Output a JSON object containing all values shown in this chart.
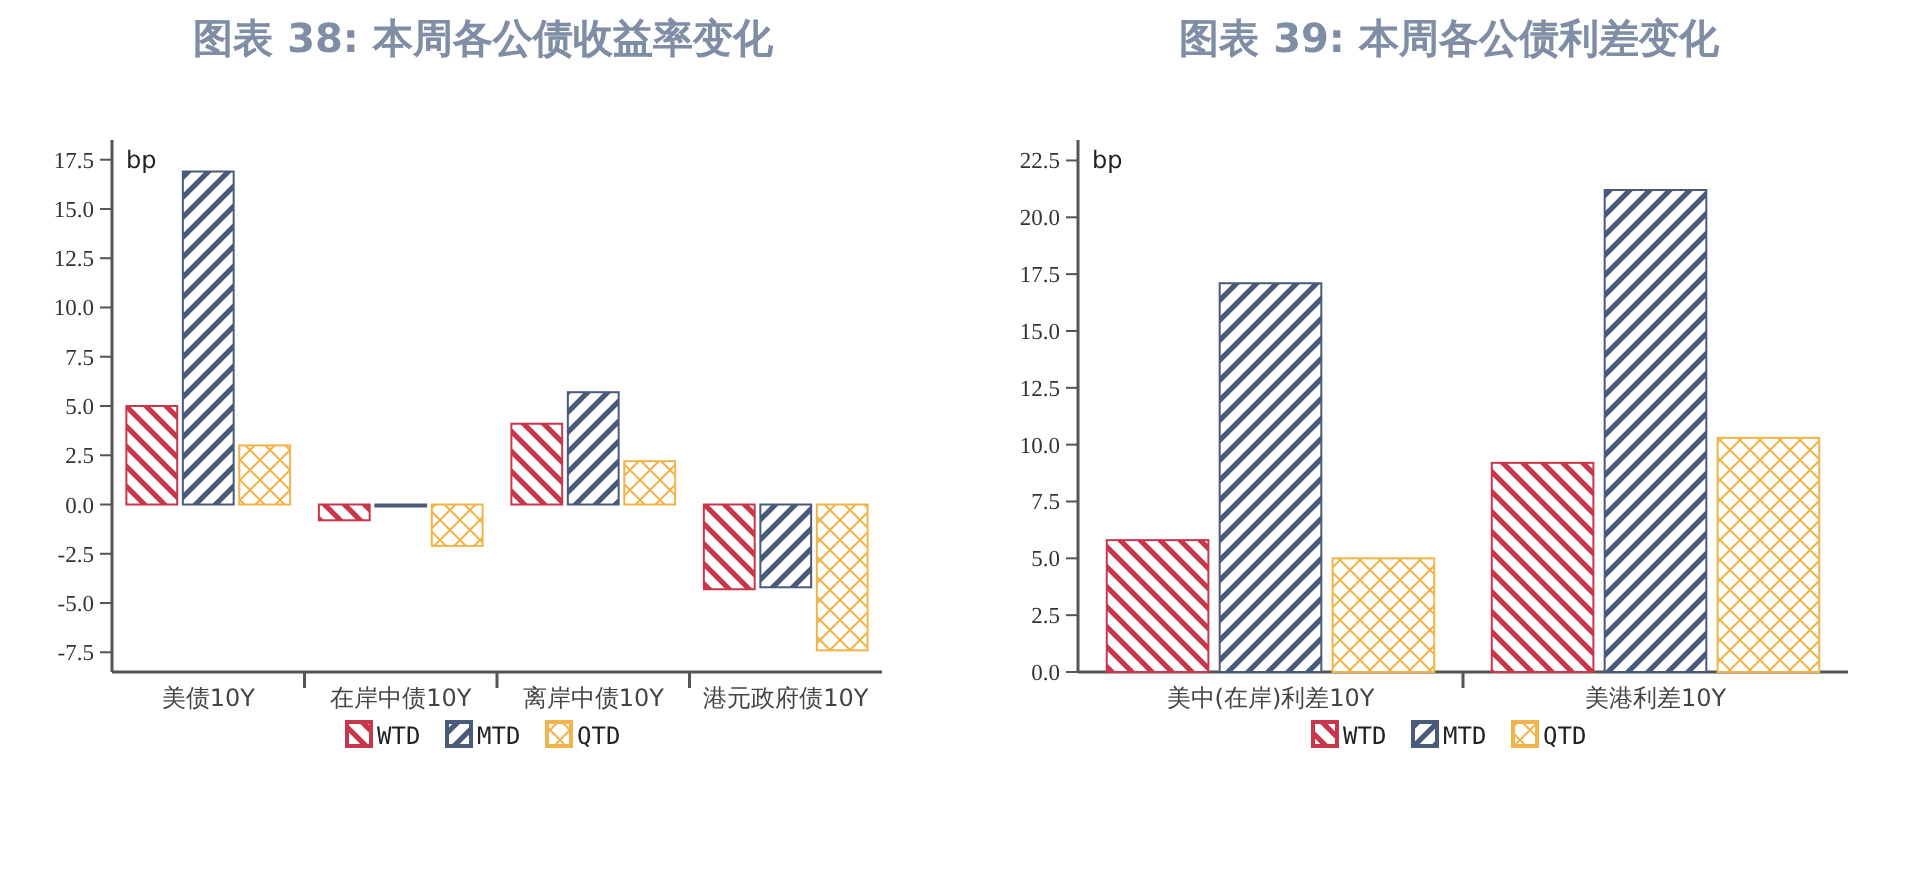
{
  "chart_data": [
    {
      "type": "bar",
      "title": "图表 38: 本周各公债收益率变化",
      "ylabel": "bp",
      "categories": [
        "美债10Y",
        "在岸中债10Y",
        "离岸中债10Y",
        "港元政府债10Y"
      ],
      "series": [
        {
          "name": "WTD",
          "color": "#c8374b",
          "values": [
            5.0,
            -0.8,
            4.1,
            -4.3
          ]
        },
        {
          "name": "MTD",
          "color": "#4a5a7a",
          "values": [
            16.9,
            -0.1,
            5.7,
            -4.2
          ]
        },
        {
          "name": "QTD",
          "color": "#f0b44a",
          "values": [
            3.0,
            -2.1,
            2.2,
            -7.4
          ]
        }
      ],
      "ylim": [
        -8.5,
        18.5
      ],
      "yticks": [
        {
          "value": -7.5,
          "label": "-7.5"
        },
        {
          "value": -5,
          "label": "-5.0"
        },
        {
          "value": -2.5,
          "label": "-2.5"
        },
        {
          "value": 0,
          "label": "0.0"
        },
        {
          "value": 2.5,
          "label": "2.5"
        },
        {
          "value": 5,
          "label": "5.0"
        },
        {
          "value": 7.5,
          "label": "7.5"
        },
        {
          "value": 10,
          "label": "10.0"
        },
        {
          "value": 12.5,
          "label": "12.5"
        },
        {
          "value": 15,
          "label": "15.0"
        },
        {
          "value": 17.5,
          "label": "17.5"
        }
      ],
      "legend": "bottom"
    },
    {
      "type": "bar",
      "title": "图表 39: 本周各公债利差变化",
      "ylabel": "bp",
      "categories": [
        "美中(在岸)利差10Y",
        "美港利差10Y"
      ],
      "series": [
        {
          "name": "WTD",
          "color": "#c8374b",
          "values": [
            5.8,
            9.2
          ]
        },
        {
          "name": "MTD",
          "color": "#4a5a7a",
          "values": [
            17.1,
            21.2
          ]
        },
        {
          "name": "QTD",
          "color": "#f0b44a",
          "values": [
            5.0,
            10.3
          ]
        }
      ],
      "ylim": [
        0,
        23.4
      ],
      "yticks": [
        {
          "value": 0,
          "label": "0.0"
        },
        {
          "value": 2.5,
          "label": "2.5"
        },
        {
          "value": 5,
          "label": "5.0"
        },
        {
          "value": 7.5,
          "label": "7.5"
        },
        {
          "value": 10,
          "label": "10.0"
        },
        {
          "value": 12.5,
          "label": "12.5"
        },
        {
          "value": 15,
          "label": "15.0"
        },
        {
          "value": 17.5,
          "label": "17.5"
        },
        {
          "value": 20,
          "label": "20.0"
        },
        {
          "value": 22.5,
          "label": "22.5"
        }
      ],
      "legend": "bottom"
    }
  ]
}
